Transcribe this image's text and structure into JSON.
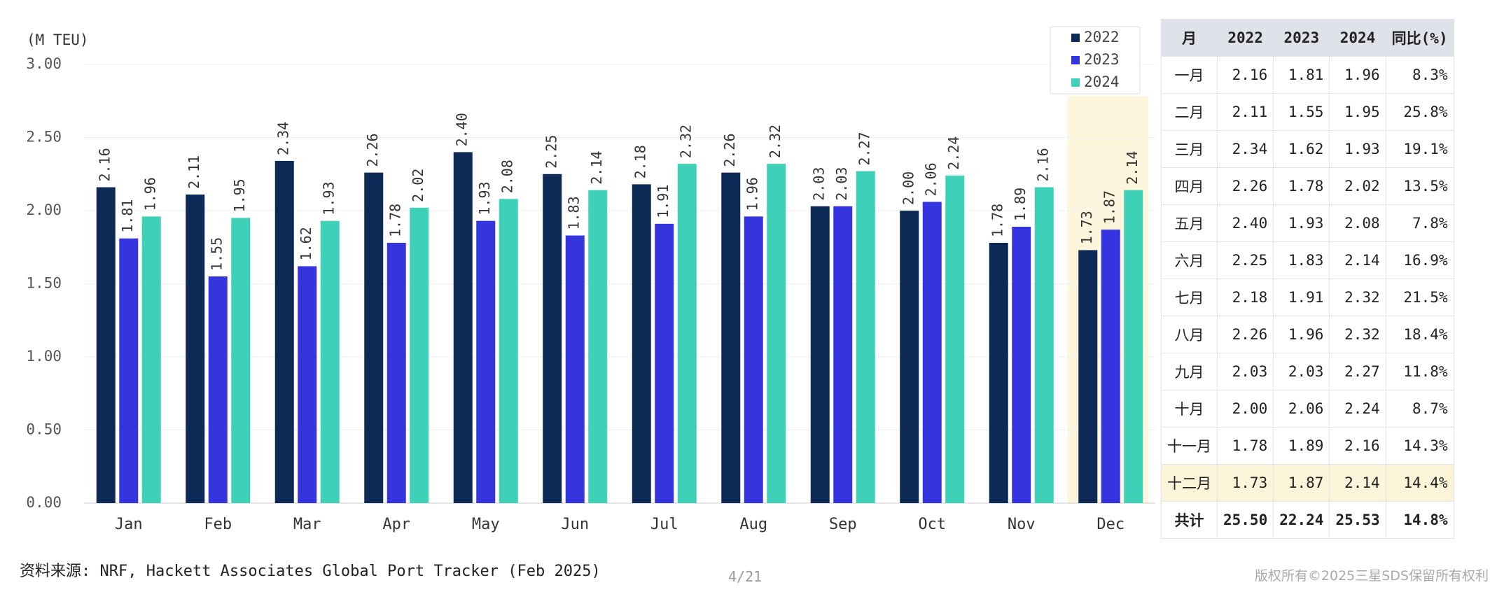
{
  "chart_data": {
    "type": "bar",
    "y_label": "(M TEU)",
    "categories": [
      "Jan",
      "Feb",
      "Mar",
      "Apr",
      "May",
      "Jun",
      "Jul",
      "Aug",
      "Sep",
      "Oct",
      "Nov",
      "Dec"
    ],
    "series": [
      {
        "name": "2022",
        "color": "#0d2a57",
        "values": [
          2.16,
          2.11,
          2.34,
          2.26,
          2.4,
          2.25,
          2.18,
          2.26,
          2.03,
          2.0,
          1.78,
          1.73
        ],
        "value_labels": [
          "2.16",
          "2.11",
          "2.34",
          "2.26",
          "2.40",
          "2.25",
          "2.18",
          "2.26",
          "2.03",
          "2.00",
          "1.78",
          "1.73"
        ]
      },
      {
        "name": "2023",
        "color": "#3535e0",
        "values": [
          1.81,
          1.55,
          1.62,
          1.78,
          1.93,
          1.83,
          1.91,
          1.96,
          2.03,
          2.06,
          1.89,
          1.87
        ],
        "value_labels": [
          "1.81",
          "1.55",
          "1.62",
          "1.78",
          "1.93",
          "1.83",
          "1.91",
          "1.96",
          "2.03",
          "2.06",
          "1.89",
          "1.87"
        ]
      },
      {
        "name": "2024",
        "color": "#3fd0b8",
        "values": [
          1.96,
          1.95,
          1.93,
          2.02,
          2.08,
          2.14,
          2.32,
          2.32,
          2.27,
          2.24,
          2.16,
          2.14
        ],
        "value_labels": [
          "1.96",
          "1.95",
          "1.93",
          "2.02",
          "2.08",
          "2.14",
          "2.32",
          "2.32",
          "2.27",
          "2.24",
          "2.16",
          "2.14"
        ]
      }
    ],
    "ylim": [
      0,
      3
    ],
    "yticks": [
      {
        "value": 0,
        "label": "0.00"
      },
      {
        "value": 0.5,
        "label": "0.50"
      },
      {
        "value": 1,
        "label": "1.00"
      },
      {
        "value": 1.5,
        "label": "1.50"
      },
      {
        "value": 2,
        "label": "2.00"
      },
      {
        "value": 2.5,
        "label": "2.50"
      },
      {
        "value": 3,
        "label": "3.00"
      }
    ],
    "grid": true,
    "legend": "upper right",
    "highlight_index": 11
  },
  "table": {
    "header": [
      "月",
      "2022",
      "2023",
      "2024",
      "同比(%)"
    ],
    "rows": [
      [
        "一月",
        "2.16",
        "1.81",
        "1.96",
        "8.3%"
      ],
      [
        "二月",
        "2.11",
        "1.55",
        "1.95",
        "25.8%"
      ],
      [
        "三月",
        "2.34",
        "1.62",
        "1.93",
        "19.1%"
      ],
      [
        "四月",
        "2.26",
        "1.78",
        "2.02",
        "13.5%"
      ],
      [
        "五月",
        "2.40",
        "1.93",
        "2.08",
        "7.8%"
      ],
      [
        "六月",
        "2.25",
        "1.83",
        "2.14",
        "16.9%"
      ],
      [
        "七月",
        "2.18",
        "1.91",
        "2.32",
        "21.5%"
      ],
      [
        "八月",
        "2.26",
        "1.96",
        "2.32",
        "18.4%"
      ],
      [
        "九月",
        "2.03",
        "2.03",
        "2.27",
        "11.8%"
      ],
      [
        "十月",
        "2.00",
        "2.06",
        "2.24",
        "8.7%"
      ],
      [
        "十一月",
        "1.78",
        "1.89",
        "2.16",
        "14.3%"
      ],
      [
        "十二月",
        "1.73",
        "1.87",
        "2.14",
        "14.4%"
      ],
      [
        "共计",
        "25.50",
        "22.24",
        "25.53",
        "14.8%"
      ]
    ],
    "highlight_row": 11
  },
  "footer": {
    "source": "资料来源: NRF, Hackett Associates Global Port Tracker (Feb 2025)",
    "page": "4/21",
    "copyright": "版权所有©2025三星SDS保留所有权利"
  }
}
